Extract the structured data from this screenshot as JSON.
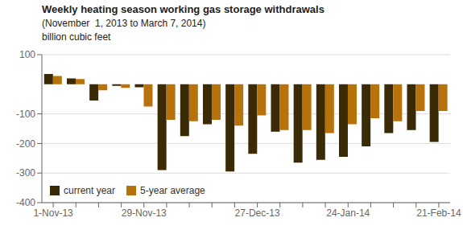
{
  "chart_data": {
    "type": "bar",
    "title": "Weekly heating season working gas storage withdrawals",
    "subtitle": "(November  1, 2013 to March 7, 2014)",
    "ylabel": "billion cubic feet",
    "categories": [
      "1-Nov-13",
      null,
      null,
      null,
      "29-Nov-13",
      null,
      null,
      null,
      null,
      "27-Dec-13",
      null,
      null,
      null,
      "24-Jan-14",
      null,
      null,
      null,
      "21-Feb-14"
    ],
    "series": [
      {
        "name": "current year",
        "color": "#3b2a06",
        "values": [
          35,
          20,
          -55,
          -5,
          -10,
          -290,
          -175,
          -135,
          -295,
          -235,
          -160,
          -265,
          -255,
          -245,
          -210,
          -165,
          -155,
          -195
        ]
      },
      {
        "name": "5-year average",
        "color": "#b8720c",
        "values": [
          28,
          18,
          -20,
          -12,
          -75,
          -120,
          -125,
          -120,
          -140,
          -105,
          -155,
          -155,
          -165,
          -135,
          -115,
          -125,
          -90,
          -90
        ]
      }
    ],
    "ylim": [
      -400,
      100
    ],
    "yticks": [
      -400,
      -300,
      -200,
      -100,
      100
    ],
    "grid": true,
    "legend": "lower left"
  }
}
